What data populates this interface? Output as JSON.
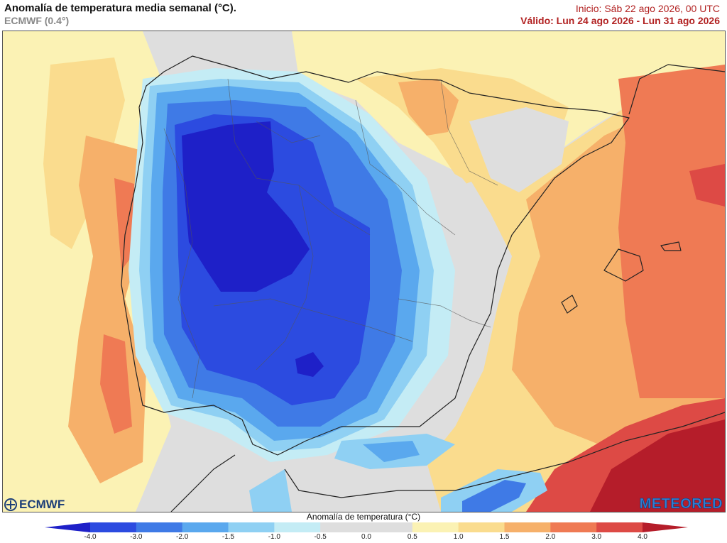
{
  "header": {
    "title": "Anomalía de temperatura media semanal (°C).",
    "model": "ECMWF (0.4°)",
    "init": "Inicio: Sáb 22 ago 2026, 00 UTC",
    "valid": "Válido: Lun 24 ago 2026 - Lun 31 ago 2026"
  },
  "map": {
    "region": "Península Ibérica y Baleares",
    "variable": "Anomalía de temperatura",
    "units": "°C"
  },
  "colorbar": {
    "title": "Anomalía de temperatura (°C)",
    "ticks": [
      "-4.0",
      "-3.0",
      "-2.0",
      "-1.5",
      "-1.0",
      "-0.5",
      "0.0",
      "0.5",
      "1.0",
      "1.5",
      "2.0",
      "3.0",
      "4.0"
    ],
    "colors": [
      "#1e20c8",
      "#2c4be0",
      "#3f7ae6",
      "#5aa8ee",
      "#8fd0f3",
      "#c4ecf5",
      "#dedede",
      "#dedede",
      "#fbf2b4",
      "#fadc8e",
      "#f6b06a",
      "#ef7a54",
      "#dd4a45",
      "#b51d2a"
    ]
  },
  "logos": {
    "left": "ECMWF",
    "right": "METEORED"
  }
}
